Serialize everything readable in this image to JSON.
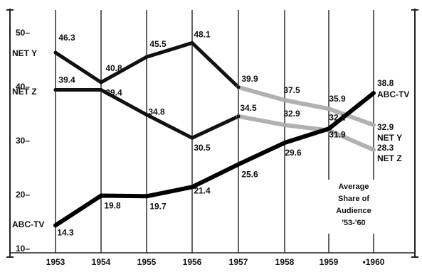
{
  "chart_data": {
    "type": "line",
    "title": "",
    "xlabel": "",
    "ylabel": "",
    "categories": [
      "1953",
      "1954",
      "1955",
      "1956",
      "1957",
      "1958",
      "1959",
      "1960"
    ],
    "x_tick_labels": [
      "1953",
      "1954",
      "1955",
      "1956",
      "1957",
      "1958",
      "1959",
      "•1960"
    ],
    "ylim": [
      10,
      50
    ],
    "y_ticks": [
      10,
      20,
      30,
      40,
      50
    ],
    "y_tick_labels": [
      "10–",
      "20–",
      "30–",
      "40–",
      "50–"
    ],
    "grid": "vertical lines at each year",
    "series": [
      {
        "name": "NET Y",
        "start_label": "NET Y",
        "end_label": "NET Y",
        "values": [
          46.3,
          40.8,
          45.5,
          48.1,
          39.9,
          37.5,
          35.9,
          32.9
        ],
        "value_labels": [
          "46.3",
          "40.8",
          "45.5",
          "48.1",
          "39.9",
          "37.5",
          "35.9",
          "32.9"
        ],
        "color": "#111111",
        "later_segment_color": "#a9a9a9"
      },
      {
        "name": "NET Z",
        "start_label": "NET Z",
        "end_label": "NET Z",
        "values": [
          39.4,
          39.4,
          34.8,
          30.5,
          34.5,
          32.9,
          31.9,
          28.3
        ],
        "value_labels": [
          "39.4",
          "39.4",
          "34.8",
          "30.5",
          "34.5",
          "32.9",
          "31.9",
          "28.3"
        ],
        "color": "#111111",
        "later_segment_color": "#a9a9a9"
      },
      {
        "name": "ABC-TV",
        "start_label": "ABC-TV",
        "end_label": "ABC-TV",
        "values": [
          14.3,
          19.8,
          19.7,
          21.4,
          25.6,
          29.6,
          32.2,
          38.8
        ],
        "value_labels": [
          "14.3",
          "19.8",
          "19.7",
          "21.4",
          "25.6",
          "29.6",
          "32.2",
          "38.8"
        ],
        "color": "#000000"
      }
    ],
    "annotation": [
      "Average",
      "Share of",
      "Audience",
      "'53-'60"
    ]
  }
}
